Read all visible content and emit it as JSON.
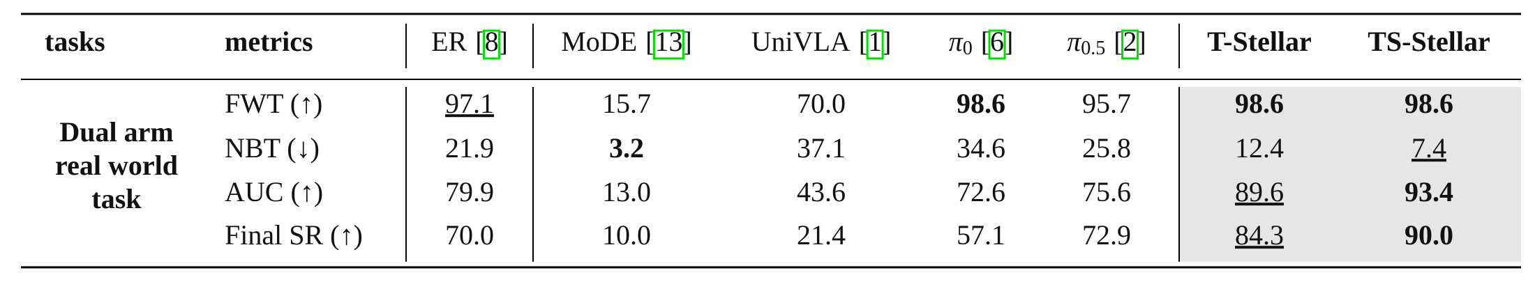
{
  "header": {
    "tasks": "tasks",
    "metrics": "metrics",
    "ref_brackets": [
      "[",
      "]"
    ],
    "methods": [
      {
        "name": "ER",
        "ref": "8"
      },
      {
        "name": "MoDE",
        "ref": "13"
      },
      {
        "name": "UniVLA",
        "ref": "1"
      },
      {
        "name": "π",
        "sub": "0",
        "ref": "6"
      },
      {
        "name": "π",
        "sub": "0.5",
        "ref": "2"
      },
      {
        "name": "T-Stellar"
      },
      {
        "name": "TS-Stellar"
      }
    ]
  },
  "table": {
    "task": [
      "Dual arm",
      "real world",
      "task"
    ],
    "rows": [
      {
        "metric": "FWT (↑)",
        "values": [
          "97.1",
          "15.7",
          "70.0",
          "98.6",
          "95.7",
          "98.6",
          "98.6"
        ]
      },
      {
        "metric": "NBT (↓)",
        "values": [
          "21.9",
          "3.2",
          "37.1",
          "34.6",
          "25.8",
          "12.4",
          "7.4"
        ]
      },
      {
        "metric": "AUC (↑)",
        "values": [
          "79.9",
          "13.0",
          "43.6",
          "72.6",
          "75.6",
          "89.6",
          "93.4"
        ]
      },
      {
        "metric": "Final SR (↑)",
        "values": [
          "70.0",
          "10.0",
          "21.4",
          "57.1",
          "72.9",
          "84.3",
          "90.0"
        ]
      }
    ]
  }
}
